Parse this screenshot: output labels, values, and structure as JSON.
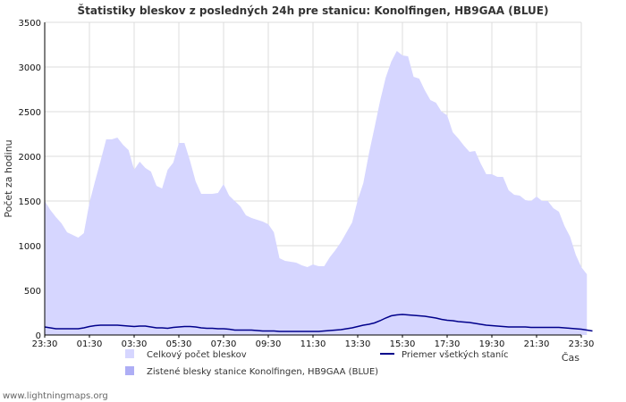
{
  "chart_data": {
    "type": "area",
    "title": "Štatistiky bleskov z posledných 24h pre stanicu: Konolfingen, HB9GAA (BLUE)",
    "xlabel": "Čas",
    "ylabel": "Počet za hodinu",
    "ylim": [
      0,
      3500
    ],
    "yticks": [
      0,
      500,
      1000,
      1500,
      2000,
      2500,
      3000,
      3500
    ],
    "xticks": [
      "23:30",
      "01:30",
      "03:30",
      "05:30",
      "07:30",
      "09:30",
      "11:30",
      "13:30",
      "15:30",
      "17:30",
      "19:30",
      "21:30",
      "23:30"
    ],
    "x_start_hour": 23.5,
    "x_step_hours": 0.25,
    "grid": true,
    "series": [
      {
        "name": "Celkový počet bleskov",
        "kind": "area",
        "color": "#d6d6ff",
        "values": [
          1500,
          1400,
          1320,
          1250,
          1150,
          1120,
          1090,
          1140,
          1480,
          1720,
          1950,
          2190,
          2190,
          2210,
          2130,
          2070,
          1850,
          1940,
          1870,
          1830,
          1670,
          1640,
          1850,
          1930,
          2150,
          2150,
          1950,
          1720,
          1580,
          1580,
          1580,
          1590,
          1690,
          1560,
          1500,
          1440,
          1340,
          1310,
          1290,
          1270,
          1240,
          1150,
          860,
          830,
          820,
          810,
          780,
          760,
          790,
          770,
          770,
          870,
          950,
          1040,
          1150,
          1260,
          1510,
          1700,
          2030,
          2320,
          2620,
          2880,
          3060,
          3180,
          3130,
          3120,
          2890,
          2870,
          2740,
          2630,
          2600,
          2500,
          2460,
          2270,
          2200,
          2120,
          2050,
          2060,
          1920,
          1800,
          1800,
          1770,
          1770,
          1620,
          1570,
          1560,
          1510,
          1500,
          1550,
          1500,
          1500,
          1420,
          1380,
          1220,
          1100,
          900,
          760,
          680
        ]
      },
      {
        "name": "Zistené blesky stanice Konolfingen, HB9GAA (BLUE)",
        "kind": "area",
        "color": "#aeaef5",
        "values": []
      },
      {
        "name": "Priemer všetkých staníc",
        "kind": "line",
        "color": "#00008b",
        "values": [
          90,
          80,
          70,
          70,
          70,
          70,
          70,
          80,
          95,
          105,
          110,
          110,
          110,
          110,
          105,
          100,
          95,
          100,
          100,
          90,
          80,
          80,
          75,
          85,
          90,
          95,
          95,
          90,
          80,
          75,
          75,
          70,
          70,
          65,
          55,
          55,
          55,
          55,
          50,
          45,
          45,
          45,
          40,
          40,
          40,
          40,
          40,
          40,
          40,
          40,
          45,
          50,
          55,
          60,
          70,
          80,
          95,
          110,
          120,
          135,
          160,
          190,
          215,
          225,
          230,
          225,
          220,
          215,
          210,
          200,
          190,
          175,
          165,
          160,
          150,
          145,
          140,
          130,
          120,
          110,
          105,
          100,
          95,
          90,
          90,
          90,
          90,
          85,
          85,
          85,
          85,
          85,
          85,
          80,
          75,
          70,
          65,
          55,
          45
        ]
      }
    ],
    "legend_position": "bottom"
  },
  "footer": {
    "site": "www.lightningmaps.org"
  }
}
